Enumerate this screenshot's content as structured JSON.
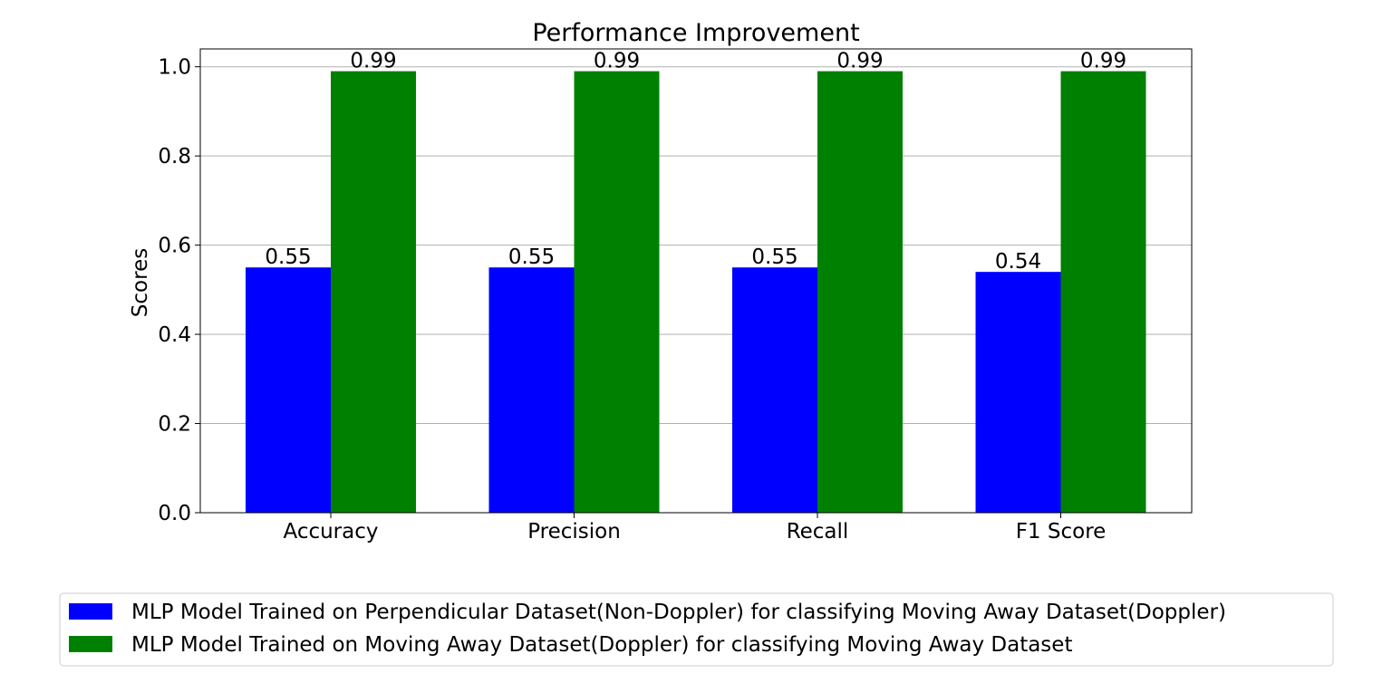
{
  "chart_data": {
    "type": "bar",
    "title": "Performance Improvement",
    "xlabel": "",
    "ylabel": "Scores",
    "categories": [
      "Accuracy",
      "Precision",
      "Recall",
      "F1 Score"
    ],
    "ylim": [
      0,
      1.04
    ],
    "yticks": [
      "0.0",
      "0.2",
      "0.4",
      "0.6",
      "0.8",
      "1.0"
    ],
    "grid": "y",
    "legend_position": "bottom",
    "series": [
      {
        "name": "MLP Model Trained on Perpendicular Dataset(Non-Doppler) for classifying Moving Away Dataset(Doppler)",
        "color": "#0000ff",
        "values": [
          0.55,
          0.55,
          0.55,
          0.54
        ],
        "labels": [
          "0.55",
          "0.55",
          "0.55",
          "0.54"
        ]
      },
      {
        "name": "MLP Model Trained on Moving Away Dataset(Doppler) for classifying Moving Away Dataset",
        "color": "#008000",
        "values": [
          0.99,
          0.99,
          0.99,
          0.99
        ],
        "labels": [
          "0.99",
          "0.99",
          "0.99",
          "0.99"
        ]
      }
    ]
  }
}
